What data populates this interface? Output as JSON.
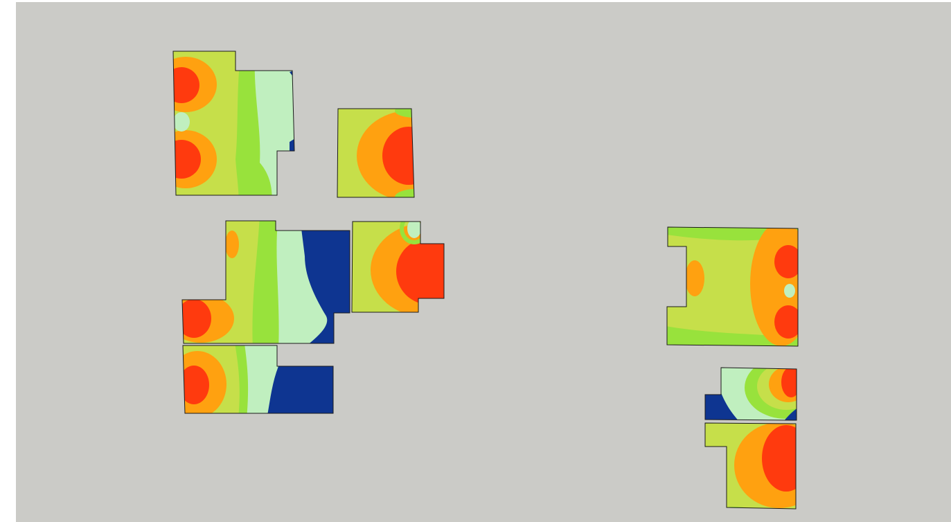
{
  "viewport": {
    "background": "#cbcbc7",
    "frame_color": "#ffffff"
  },
  "legend_colors": {
    "red": "#ff3a0e",
    "orange": "#ffa110",
    "yellow_green": "#c6df4a",
    "green": "#98e23c",
    "pale_green": "#c0efbf",
    "blue": "#0e3591",
    "outline": "#1a1a1a"
  },
  "panels": [
    {
      "id": "panel-a",
      "description": "top-left-tall-room"
    },
    {
      "id": "panel-b",
      "description": "top-middle-room"
    },
    {
      "id": "panel-c",
      "description": "middle-left-room"
    },
    {
      "id": "panel-d",
      "description": "middle-room-with-notch"
    },
    {
      "id": "panel-e",
      "description": "bottom-left-room"
    },
    {
      "id": "panel-f",
      "description": "right-large-room"
    },
    {
      "id": "panel-g",
      "description": "right-small-room"
    },
    {
      "id": "panel-h",
      "description": "right-bottom-room"
    }
  ]
}
